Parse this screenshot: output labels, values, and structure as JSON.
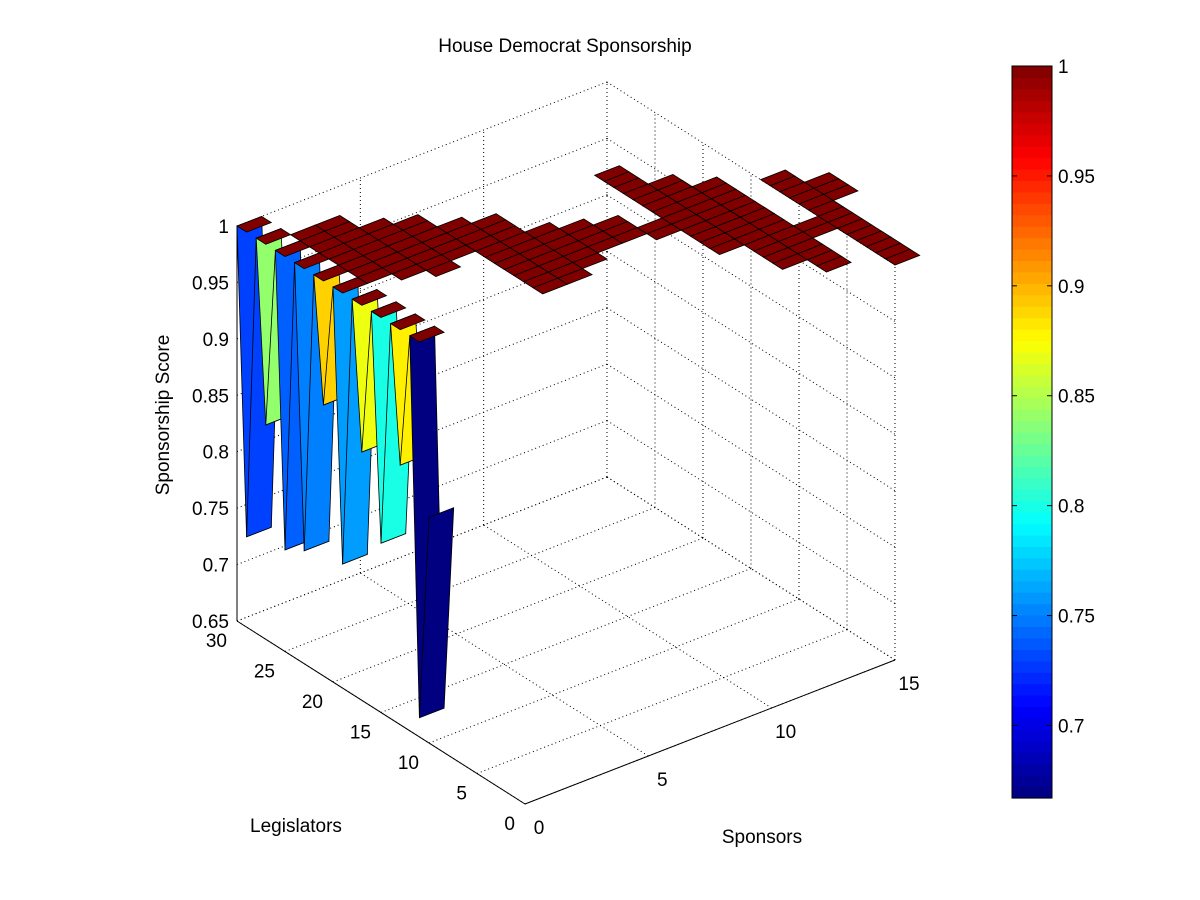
{
  "chart_data": {
    "type": "surface3d",
    "title": "House Democrat Sponsorship",
    "xlabel": "Sponsors",
    "ylabel": "Legislators",
    "zlabel": "Sponsorship Score",
    "xlim": [
      0,
      15
    ],
    "ylim": [
      0,
      30
    ],
    "zlim": [
      0.65,
      1
    ],
    "x_ticks": [
      "0",
      "5",
      "10",
      "15"
    ],
    "y_ticks": [
      "0",
      "5",
      "10",
      "15",
      "20",
      "25",
      "30"
    ],
    "z_ticks": [
      "0.65",
      "0.7",
      "0.75",
      "0.8",
      "0.85",
      "0.9",
      "0.95",
      "1"
    ],
    "grid": true,
    "colormap": "jet",
    "colorbar": {
      "range": [
        0.667,
        1
      ],
      "ticks": [
        "0.7",
        "0.75",
        "0.8",
        "0.85",
        "0.9",
        "0.95",
        "1"
      ]
    },
    "sponsor_row_scores": [
      {
        "legislator": 30,
        "score": 1.0
      },
      {
        "legislator": 29,
        "score": 0.73
      },
      {
        "legislator": 28,
        "score": 1.0
      },
      {
        "legislator": 27,
        "score": 0.84
      },
      {
        "legislator": 26,
        "score": 1.0
      },
      {
        "legislator": 25,
        "score": 0.74
      },
      {
        "legislator": 24,
        "score": 1.0
      },
      {
        "legislator": 23,
        "score": 0.75
      },
      {
        "legislator": 22,
        "score": 1.0
      },
      {
        "legislator": 21,
        "score": 0.89
      },
      {
        "legislator": 20,
        "score": 1.0
      },
      {
        "legislator": 19,
        "score": 0.76
      },
      {
        "legislator": 18,
        "score": 1.0
      },
      {
        "legislator": 17,
        "score": 0.87
      },
      {
        "legislator": 16,
        "score": 1.0
      },
      {
        "legislator": 15,
        "score": 0.8
      },
      {
        "legislator": 14,
        "score": 1.0
      },
      {
        "legislator": 13,
        "score": 0.88
      },
      {
        "legislator": 12,
        "score": 1.0
      },
      {
        "legislator": 11,
        "score": 0.667
      },
      {
        "legislator": 10,
        "score": 0.85
      }
    ],
    "cells_at_score_1": [
      [
        1,
        20
      ],
      [
        1,
        21
      ],
      [
        1,
        22
      ],
      [
        1,
        23
      ],
      [
        1,
        24
      ],
      [
        1,
        25
      ],
      [
        1,
        26
      ],
      [
        1,
        27
      ],
      [
        2,
        19
      ],
      [
        2,
        20
      ],
      [
        2,
        21
      ],
      [
        2,
        22
      ],
      [
        2,
        23
      ],
      [
        2,
        24
      ],
      [
        2,
        25
      ],
      [
        2,
        26
      ],
      [
        2,
        27
      ],
      [
        3,
        18
      ],
      [
        3,
        19
      ],
      [
        3,
        20
      ],
      [
        3,
        21
      ],
      [
        3,
        22
      ],
      [
        3,
        23
      ],
      [
        3,
        24
      ],
      [
        3,
        25
      ],
      [
        4,
        19
      ],
      [
        4,
        20
      ],
      [
        4,
        21
      ],
      [
        4,
        22
      ],
      [
        4,
        23
      ],
      [
        4,
        24
      ],
      [
        5,
        12
      ],
      [
        5,
        13
      ],
      [
        5,
        14
      ],
      [
        5,
        15
      ],
      [
        5,
        16
      ],
      [
        5,
        17
      ],
      [
        5,
        18
      ],
      [
        5,
        19
      ],
      [
        5,
        20
      ],
      [
        5,
        21
      ],
      [
        5,
        22
      ],
      [
        6,
        12
      ],
      [
        6,
        13
      ],
      [
        6,
        14
      ],
      [
        6,
        15
      ],
      [
        6,
        16
      ],
      [
        6,
        17
      ],
      [
        6,
        18
      ],
      [
        6,
        19
      ],
      [
        6,
        20
      ],
      [
        6,
        21
      ],
      [
        7,
        13
      ],
      [
        7,
        14
      ],
      [
        7,
        15
      ],
      [
        7,
        16
      ],
      [
        7,
        17
      ],
      [
        7,
        18
      ],
      [
        8,
        14
      ],
      [
        8,
        15
      ],
      [
        8,
        16
      ],
      [
        8,
        17
      ],
      [
        9,
        14
      ],
      [
        9,
        15
      ],
      [
        9,
        16
      ],
      [
        10,
        13
      ],
      [
        10,
        14
      ],
      [
        11,
        9
      ],
      [
        11,
        10
      ],
      [
        11,
        11
      ],
      [
        11,
        12
      ],
      [
        11,
        13
      ],
      [
        11,
        14
      ],
      [
        11,
        15
      ],
      [
        11,
        16
      ],
      [
        11,
        17
      ],
      [
        11,
        18
      ],
      [
        11,
        19
      ],
      [
        11,
        20
      ],
      [
        11,
        21
      ],
      [
        12,
        5
      ],
      [
        12,
        6
      ],
      [
        12,
        7
      ],
      [
        12,
        8
      ],
      [
        12,
        9
      ],
      [
        12,
        10
      ],
      [
        12,
        11
      ],
      [
        12,
        12
      ],
      [
        12,
        13
      ],
      [
        12,
        14
      ],
      [
        12,
        15
      ],
      [
        12,
        16
      ],
      [
        12,
        17
      ],
      [
        12,
        18
      ],
      [
        13,
        3
      ],
      [
        13,
        4
      ],
      [
        13,
        5
      ],
      [
        13,
        6
      ],
      [
        13,
        7
      ],
      [
        13,
        8
      ],
      [
        13,
        9
      ],
      [
        13,
        10
      ],
      [
        13,
        11
      ],
      [
        13,
        12
      ],
      [
        13,
        13
      ],
      [
        13,
        14
      ],
      [
        13,
        15
      ],
      [
        13,
        16
      ],
      [
        14,
        7
      ],
      [
        14,
        8
      ],
      [
        15,
        1
      ],
      [
        15,
        2
      ],
      [
        15,
        3
      ],
      [
        15,
        4
      ],
      [
        15,
        5
      ],
      [
        15,
        6
      ],
      [
        15,
        7
      ],
      [
        15,
        8
      ],
      [
        15,
        9
      ],
      [
        15,
        10
      ],
      [
        15,
        11
      ],
      [
        15,
        12
      ],
      [
        15,
        13
      ],
      [
        15,
        14
      ],
      [
        16,
        10
      ],
      [
        16,
        11
      ],
      [
        16,
        12
      ]
    ]
  }
}
